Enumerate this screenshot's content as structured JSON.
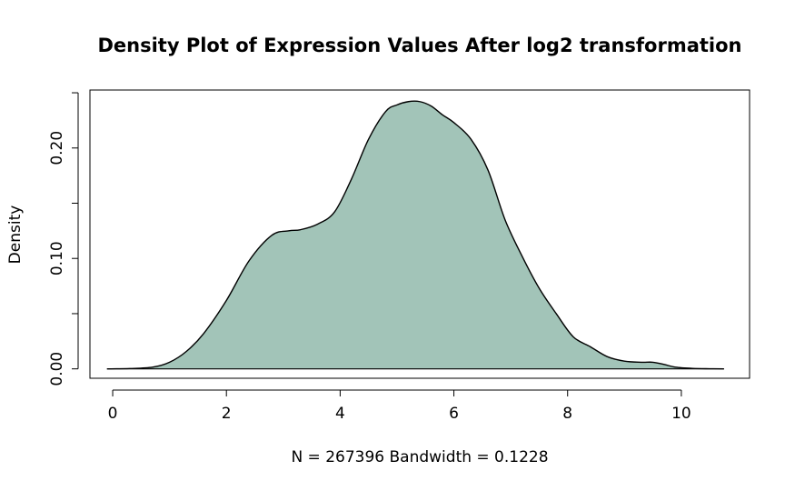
{
  "chart_data": {
    "type": "area",
    "title": "Density Plot of Expression Values After log2 transformation",
    "xlabel": "N = 267396   Bandwidth = 0.1228",
    "ylabel": "Density",
    "xlim": [
      -0.4,
      11.2
    ],
    "ylim": [
      -0.0085,
      0.2525
    ],
    "x_ticks": [
      0,
      2,
      4,
      6,
      8,
      10
    ],
    "x_tick_labels": [
      "0",
      "2",
      "4",
      "6",
      "8",
      "10"
    ],
    "y_ticks": [
      0.0,
      0.05,
      0.1,
      0.15,
      0.2,
      0.25
    ],
    "y_tick_labels": [
      "0.00",
      "",
      "0.10",
      "",
      "0.20",
      ""
    ],
    "grid": false,
    "fill_color": "#a2c4b8",
    "line_color": "#000000",
    "x": [
      -0.1,
      0.3,
      0.7,
      1.0,
      1.3,
      1.6,
      2.0,
      2.4,
      2.8,
      3.1,
      3.3,
      3.6,
      3.9,
      4.2,
      4.5,
      4.8,
      5.0,
      5.2,
      5.4,
      5.6,
      5.8,
      6.0,
      6.3,
      6.6,
      6.9,
      7.2,
      7.5,
      7.8,
      8.1,
      8.4,
      8.7,
      9.0,
      9.3,
      9.5,
      9.7,
      9.9,
      10.2,
      10.5,
      10.75
    ],
    "y": [
      0.0,
      0.0003,
      0.0015,
      0.006,
      0.016,
      0.032,
      0.062,
      0.098,
      0.121,
      0.125,
      0.126,
      0.131,
      0.142,
      0.172,
      0.208,
      0.233,
      0.239,
      0.242,
      0.242,
      0.238,
      0.23,
      0.223,
      0.208,
      0.18,
      0.135,
      0.102,
      0.073,
      0.05,
      0.029,
      0.02,
      0.011,
      0.007,
      0.006,
      0.006,
      0.004,
      0.0015,
      0.0004,
      0.0001,
      0.0
    ]
  }
}
